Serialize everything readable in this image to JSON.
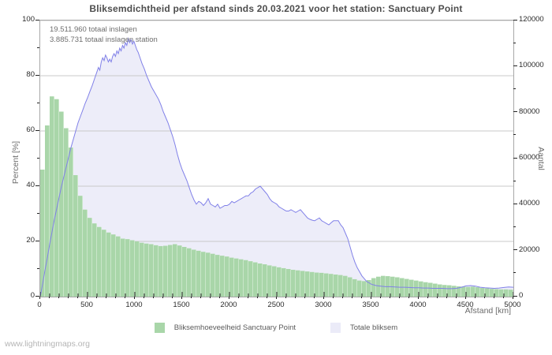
{
  "header": {
    "title": "Bliksemdichtheid per afstand sinds 20.03.2021 voor het station: Sanctuary Point"
  },
  "annotations": {
    "line1": "19.511.960 totaal inslagen",
    "line2": "3.885.731 totaal inslagen station"
  },
  "watermark": "www.lightningmaps.org",
  "legend": [
    {
      "label": "Bliksemhoeveelheid Sanctuary Point",
      "color": "#a9d6a9"
    },
    {
      "label": "Totale bliksem",
      "color": "#ebebf8"
    }
  ],
  "chart_data": {
    "type": "bar+area-line",
    "title": "Bliksemdichtheid per afstand sinds 20.03.2021 voor het station: Sanctuary Point",
    "xlabel": "Afstand  [km]",
    "ylabel_left": "Percent  [%]",
    "ylabel_right": "Aantal",
    "xlim": [
      0,
      5000
    ],
    "ylim_left": [
      0,
      100
    ],
    "ylim_right": [
      0,
      120000
    ],
    "grid": true,
    "legend_position": "bottom-center",
    "x_major_ticks": [
      0,
      500,
      1000,
      1500,
      2000,
      2500,
      3000,
      3500,
      4000,
      4500,
      5000
    ],
    "x_minor_step": 100,
    "y_left_major_ticks": [
      0,
      20,
      40,
      60,
      80,
      100
    ],
    "y_left_minor_ticks": [
      10,
      30,
      50,
      70,
      90
    ],
    "y_right_major_ticks": [
      0,
      20000,
      40000,
      60000,
      80000,
      100000,
      120000
    ],
    "y_right_minor_ticks": [
      10000,
      30000,
      50000,
      70000,
      90000,
      110000
    ],
    "series": [
      {
        "name": "Bliksemhoeveelheid Sanctuary Point",
        "type": "bar",
        "axis": "left_percent",
        "bar_color": "#a9d6a9",
        "bar_gap_color": "#c9e6c9",
        "bin_width_km": 50,
        "values_percent": [
          46,
          62,
          72.5,
          71.5,
          67,
          61,
          54,
          44,
          36.5,
          31.5,
          28.5,
          26.5,
          25.2,
          24.2,
          23.2,
          22.5,
          21.8,
          21,
          20.8,
          20.4,
          20,
          19.5,
          19.2,
          19,
          18.6,
          18.3,
          18.4,
          18.7,
          19,
          18.5,
          18,
          17.5,
          17,
          16.6,
          16.2,
          15.9,
          15.5,
          15.1,
          14.8,
          14.5,
          14.1,
          13.8,
          13.5,
          13.2,
          12.8,
          12.4,
          12,
          11.7,
          11.3,
          11,
          10.6,
          10.3,
          10,
          9.7,
          9.5,
          9.3,
          9.1,
          8.9,
          8.7,
          8.6,
          8.4,
          8.2,
          8,
          7.8,
          7.5,
          7,
          6.3,
          5.8,
          5.6,
          6,
          6.7,
          7.2,
          7.5,
          7.4,
          7.2,
          7,
          6.7,
          6.4,
          6.1,
          5.8,
          5.5,
          5.2,
          5,
          4.7,
          4.4,
          4.2,
          4.1,
          3.9,
          3.7,
          3.6,
          3.5,
          3.6,
          3.4,
          3.1,
          3,
          2.8,
          2.7,
          2.6,
          2.6,
          2.5
        ]
      },
      {
        "name": "Totale bliksem",
        "type": "area-line",
        "axis": "right_count_scaled_to_percent",
        "line_color": "#8080e8",
        "area_color": "#ededf9",
        "points_km_percent": [
          [
            0,
            0
          ],
          [
            25,
            4.5
          ],
          [
            50,
            9.5
          ],
          [
            75,
            14
          ],
          [
            100,
            19
          ],
          [
            125,
            23.5
          ],
          [
            150,
            28
          ],
          [
            175,
            32
          ],
          [
            200,
            36
          ],
          [
            225,
            40
          ],
          [
            250,
            43.5
          ],
          [
            275,
            47
          ],
          [
            300,
            50.5
          ],
          [
            325,
            54
          ],
          [
            350,
            57
          ],
          [
            375,
            60
          ],
          [
            400,
            63
          ],
          [
            425,
            65.3
          ],
          [
            450,
            67.6
          ],
          [
            475,
            70
          ],
          [
            500,
            72
          ],
          [
            525,
            74.3
          ],
          [
            550,
            76.5
          ],
          [
            575,
            79
          ],
          [
            600,
            81.5
          ],
          [
            615,
            83
          ],
          [
            630,
            82
          ],
          [
            645,
            85
          ],
          [
            660,
            86.5
          ],
          [
            675,
            85.5
          ],
          [
            690,
            87.5
          ],
          [
            705,
            86.5
          ],
          [
            720,
            85
          ],
          [
            735,
            86
          ],
          [
            750,
            85
          ],
          [
            765,
            87
          ],
          [
            780,
            88
          ],
          [
            795,
            87
          ],
          [
            810,
            89
          ],
          [
            825,
            88
          ],
          [
            840,
            90
          ],
          [
            855,
            89
          ],
          [
            870,
            91
          ],
          [
            885,
            90
          ],
          [
            900,
            92
          ],
          [
            915,
            91
          ],
          [
            930,
            93.5
          ],
          [
            945,
            92
          ],
          [
            960,
            93
          ],
          [
            975,
            91.5
          ],
          [
            990,
            92.5
          ],
          [
            1005,
            91
          ],
          [
            1020,
            89.5
          ],
          [
            1035,
            88.5
          ],
          [
            1050,
            87
          ],
          [
            1075,
            84.5
          ],
          [
            1100,
            82.5
          ],
          [
            1125,
            80
          ],
          [
            1150,
            78
          ],
          [
            1175,
            76
          ],
          [
            1200,
            74.5
          ],
          [
            1225,
            73
          ],
          [
            1250,
            71.5
          ],
          [
            1275,
            69.5
          ],
          [
            1300,
            67
          ],
          [
            1325,
            65
          ],
          [
            1350,
            63
          ],
          [
            1375,
            60.5
          ],
          [
            1400,
            58
          ],
          [
            1425,
            55
          ],
          [
            1450,
            51.5
          ],
          [
            1475,
            48.5
          ],
          [
            1500,
            46
          ],
          [
            1525,
            44
          ],
          [
            1550,
            42
          ],
          [
            1575,
            39.5
          ],
          [
            1600,
            37
          ],
          [
            1625,
            35
          ],
          [
            1650,
            33.5
          ],
          [
            1675,
            34.5
          ],
          [
            1700,
            34
          ],
          [
            1725,
            33
          ],
          [
            1750,
            34
          ],
          [
            1775,
            35.5
          ],
          [
            1800,
            33.5
          ],
          [
            1825,
            33
          ],
          [
            1850,
            32.5
          ],
          [
            1875,
            33.5
          ],
          [
            1900,
            32
          ],
          [
            1925,
            32.5
          ],
          [
            1950,
            33
          ],
          [
            1975,
            33
          ],
          [
            2000,
            33.5
          ],
          [
            2025,
            34.5
          ],
          [
            2050,
            34
          ],
          [
            2075,
            34.5
          ],
          [
            2100,
            35
          ],
          [
            2125,
            35.5
          ],
          [
            2150,
            36
          ],
          [
            2175,
            36.5
          ],
          [
            2200,
            36.5
          ],
          [
            2225,
            37.5
          ],
          [
            2250,
            38
          ],
          [
            2275,
            39
          ],
          [
            2300,
            39.5
          ],
          [
            2325,
            40
          ],
          [
            2350,
            39
          ],
          [
            2375,
            38
          ],
          [
            2400,
            37
          ],
          [
            2425,
            35.5
          ],
          [
            2450,
            34.5
          ],
          [
            2475,
            34
          ],
          [
            2500,
            33.5
          ],
          [
            2525,
            32.5
          ],
          [
            2550,
            32
          ],
          [
            2575,
            31.5
          ],
          [
            2600,
            31
          ],
          [
            2625,
            31
          ],
          [
            2650,
            31.5
          ],
          [
            2675,
            31
          ],
          [
            2700,
            30.5
          ],
          [
            2725,
            31
          ],
          [
            2750,
            31.5
          ],
          [
            2775,
            30.5
          ],
          [
            2800,
            29.5
          ],
          [
            2825,
            28.5
          ],
          [
            2850,
            28
          ],
          [
            2875,
            27.7
          ],
          [
            2900,
            27.5
          ],
          [
            2925,
            28
          ],
          [
            2950,
            28.5
          ],
          [
            2975,
            27.5
          ],
          [
            3000,
            27
          ],
          [
            3025,
            26.5
          ],
          [
            3050,
            26
          ],
          [
            3075,
            26.8
          ],
          [
            3100,
            27.5
          ],
          [
            3125,
            27.5
          ],
          [
            3150,
            27.5
          ],
          [
            3175,
            26
          ],
          [
            3200,
            25
          ],
          [
            3225,
            23
          ],
          [
            3250,
            21
          ],
          [
            3275,
            18
          ],
          [
            3300,
            15
          ],
          [
            3325,
            12.5
          ],
          [
            3350,
            10.5
          ],
          [
            3375,
            9
          ],
          [
            3400,
            7.5
          ],
          [
            3425,
            6.5
          ],
          [
            3450,
            5.5
          ],
          [
            3475,
            5
          ],
          [
            3500,
            4.5
          ],
          [
            3550,
            4
          ],
          [
            3600,
            3.8
          ],
          [
            3650,
            3.6
          ],
          [
            3700,
            3.6
          ],
          [
            3750,
            3.5
          ],
          [
            3800,
            3.4
          ],
          [
            3850,
            3.4
          ],
          [
            3900,
            3.3
          ],
          [
            3950,
            3.2
          ],
          [
            4000,
            3.2
          ],
          [
            4050,
            3.1
          ],
          [
            4100,
            3.1
          ],
          [
            4150,
            3
          ],
          [
            4200,
            3
          ],
          [
            4250,
            3
          ],
          [
            4300,
            2.9
          ],
          [
            4350,
            2.9
          ],
          [
            4400,
            3
          ],
          [
            4450,
            3.4
          ],
          [
            4500,
            3.9
          ],
          [
            4550,
            4
          ],
          [
            4600,
            3.8
          ],
          [
            4650,
            3.4
          ],
          [
            4700,
            3.2
          ],
          [
            4750,
            3.1
          ],
          [
            4800,
            3
          ],
          [
            4850,
            3.1
          ],
          [
            4900,
            3.3
          ],
          [
            4950,
            3.5
          ],
          [
            5000,
            3.4
          ]
        ]
      }
    ],
    "colors": {
      "grid": "#c9c9c9",
      "plot_border": "#a8a8a8",
      "tick": "#222222"
    },
    "note_scale": "100 percent on left axis corresponds to 120000 on right axis"
  }
}
